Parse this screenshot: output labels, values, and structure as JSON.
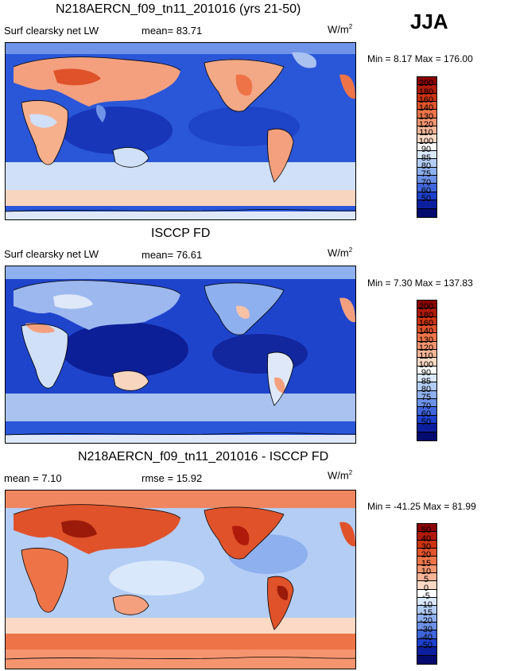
{
  "season": "JJA",
  "units_text": "W/m",
  "units_exp": "2",
  "panels": [
    {
      "title": "N218AERCN_f09_tn11_201016 (yrs 21-50)",
      "label": "Surf clearsky net LW",
      "stat1": "mean=  83.71",
      "minmax": "Min =    8.17 Max = 176.00",
      "ticks": [
        "200",
        "180",
        "160",
        "140",
        "130",
        "120",
        "110",
        "100",
        "90",
        "85",
        "80",
        "75",
        "70",
        "60",
        "50"
      ]
    },
    {
      "title": "ISCCP FD",
      "label": "Surf clearsky net LW",
      "stat1": "mean=  76.61",
      "minmax": "Min =    7.30 Max = 137.83",
      "ticks": [
        "200",
        "180",
        "160",
        "140",
        "130",
        "120",
        "110",
        "100",
        "90",
        "85",
        "80",
        "75",
        "70",
        "60",
        "50"
      ]
    },
    {
      "title": "N218AERCN_f09_tn11_201016 - ISCCP FD",
      "label": "mean =    7.10",
      "stat1": "rmse =   15.92",
      "minmax": "Min = -41.25 Max =  81.99",
      "ticks": [
        "50",
        "40",
        "30",
        "20",
        "15",
        "10",
        "5",
        "0",
        "-5",
        "-10",
        "-15",
        "-20",
        "-30",
        "-40",
        "-50"
      ]
    }
  ],
  "colorbar_colors": [
    "#8b0000",
    "#b01a0a",
    "#cc3311",
    "#e0522a",
    "#ee7448",
    "#f59570",
    "#f9b598",
    "#fbd9c4",
    "#ffffff",
    "#d9e8fb",
    "#b3cdf5",
    "#8fb0ee",
    "#6b90e6",
    "#3f65dc",
    "#1c3fcc",
    "#0b1f9e",
    "#050a6e"
  ]
}
